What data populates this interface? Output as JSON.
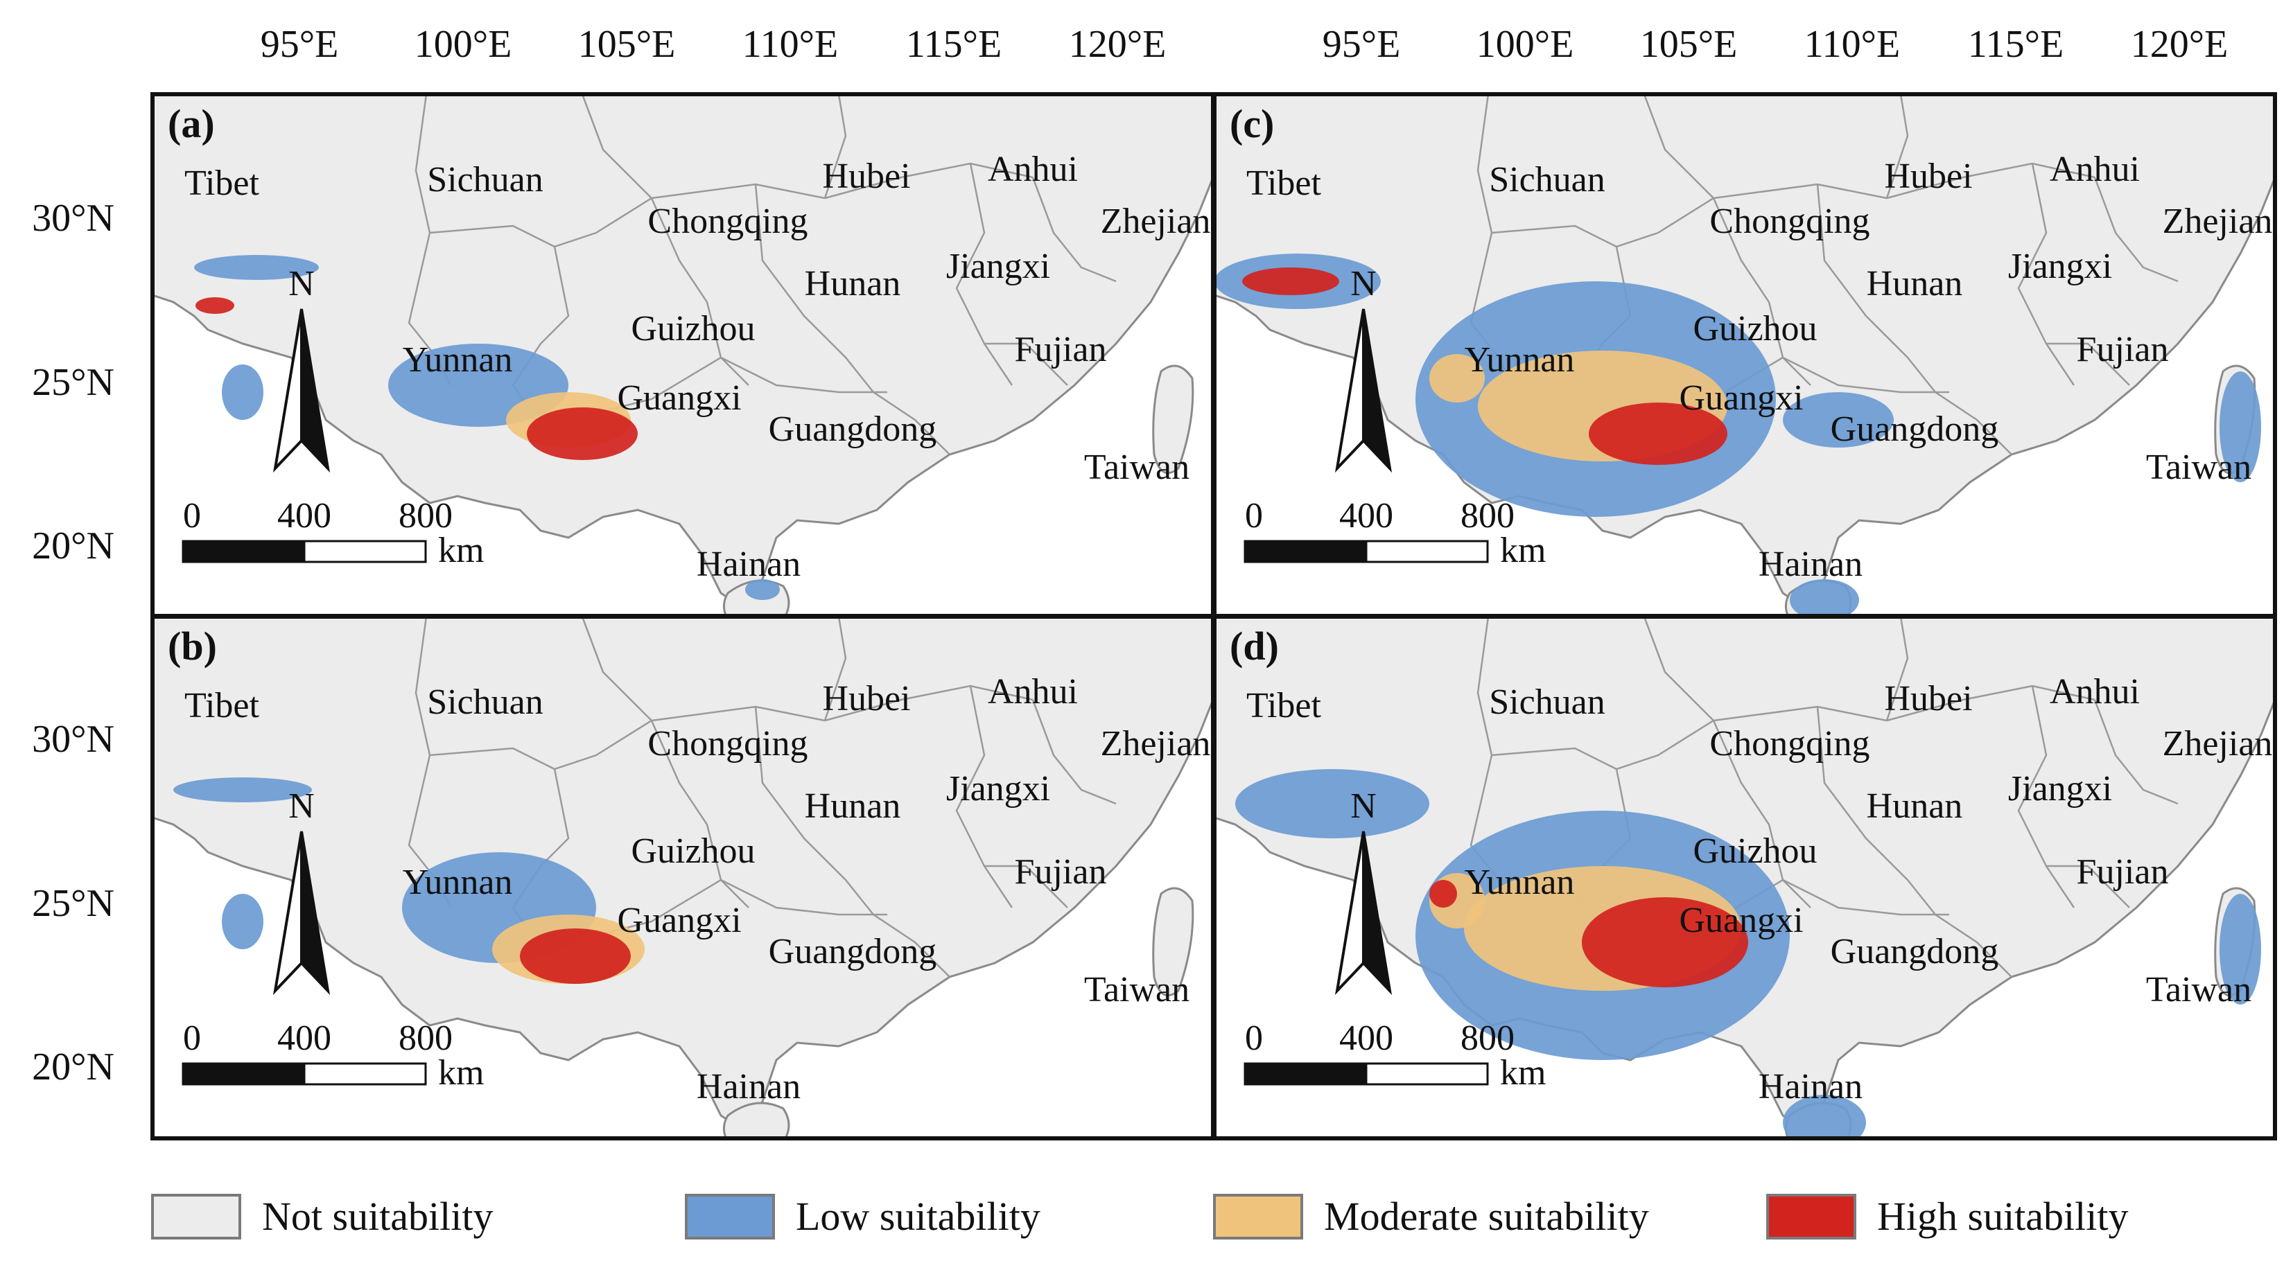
{
  "figure": {
    "top_ticks": [
      "95°E",
      "100°E",
      "105°E",
      "110°E",
      "115°E",
      "120°E"
    ],
    "left_ticks": [
      "30°N",
      "25°N",
      "20°N"
    ],
    "provinces": [
      "Tibet",
      "Sichuan",
      "Hubei",
      "Anhui",
      "Chongqing",
      "Zhejiang",
      "Jiangxi",
      "Hunan",
      "Guizhou",
      "Fujian",
      "Yunnan",
      "Guangxi",
      "Guangdong",
      "Taiwan",
      "Hainan"
    ],
    "panels": [
      {
        "id": "a",
        "letter": "(a)"
      },
      {
        "id": "b",
        "letter": "(b)"
      },
      {
        "id": "c",
        "letter": "(c)"
      },
      {
        "id": "d",
        "letter": "(d)"
      }
    ],
    "scale_bar": {
      "ticks": [
        "0",
        "400",
        "800"
      ],
      "unit": "km"
    },
    "north_arrow": "N",
    "legend": [
      {
        "label": "Not suitability",
        "color": "#ececec"
      },
      {
        "label": "Low suitability",
        "color": "#6b9bd2"
      },
      {
        "label": "Moderate suitability",
        "color": "#f0c37c"
      },
      {
        "label": "High suitability",
        "color": "#d2231e"
      }
    ]
  }
}
